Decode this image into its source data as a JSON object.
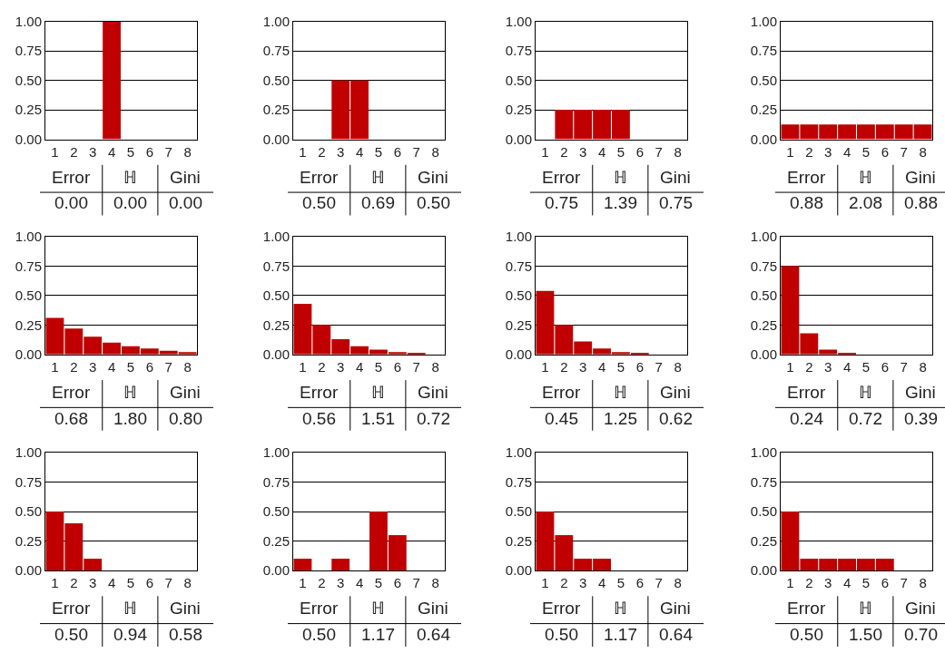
{
  "chart_data": [
    {
      "type": "bar",
      "categories": [
        "1",
        "2",
        "3",
        "4",
        "5",
        "6",
        "7",
        "8"
      ],
      "values": [
        0,
        0,
        0,
        1,
        0,
        0,
        0,
        0
      ],
      "color": "#c00000",
      "ylim": [
        0,
        1
      ],
      "yticks": [
        {
          "value": 0,
          "label": "0.00"
        },
        {
          "value": 0.25,
          "label": "0.25"
        },
        {
          "value": 0.5,
          "label": "0.50"
        },
        {
          "value": 0.75,
          "label": "0.75"
        },
        {
          "value": 1,
          "label": "1.00"
        }
      ],
      "grid": "y",
      "annotations": [
        "Error",
        "ℍ",
        "Gini",
        "0.00",
        "0.00",
        "0.00"
      ]
    },
    {
      "type": "bar",
      "categories": [
        "1",
        "2",
        "3",
        "4",
        "5",
        "6",
        "7",
        "8"
      ],
      "values": [
        0,
        0,
        0.5,
        0.5,
        0,
        0,
        0,
        0
      ],
      "color": "#c00000",
      "ylim": [
        0,
        1
      ],
      "yticks": [
        {
          "value": 0,
          "label": "0.00"
        },
        {
          "value": 0.25,
          "label": "0.25"
        },
        {
          "value": 0.5,
          "label": "0.50"
        },
        {
          "value": 0.75,
          "label": "0.75"
        },
        {
          "value": 1,
          "label": "1.00"
        }
      ],
      "grid": "y",
      "annotations": [
        "Error",
        "ℍ",
        "Gini",
        "0.50",
        "0.69",
        "0.50"
      ]
    },
    {
      "type": "bar",
      "categories": [
        "1",
        "2",
        "3",
        "4",
        "5",
        "6",
        "7",
        "8"
      ],
      "values": [
        0,
        0.25,
        0.25,
        0.25,
        0.25,
        0,
        0,
        0
      ],
      "color": "#c00000",
      "ylim": [
        0,
        1
      ],
      "yticks": [
        {
          "value": 0,
          "label": "0.00"
        },
        {
          "value": 0.25,
          "label": "0.25"
        },
        {
          "value": 0.5,
          "label": "0.50"
        },
        {
          "value": 0.75,
          "label": "0.75"
        },
        {
          "value": 1,
          "label": "1.00"
        }
      ],
      "grid": "y",
      "annotations": [
        "Error",
        "ℍ",
        "Gini",
        "0.75",
        "1.39",
        "0.75"
      ]
    },
    {
      "type": "bar",
      "categories": [
        "1",
        "2",
        "3",
        "4",
        "5",
        "6",
        "7",
        "8"
      ],
      "values": [
        0.125,
        0.125,
        0.125,
        0.125,
        0.125,
        0.125,
        0.125,
        0.125
      ],
      "color": "#c00000",
      "ylim": [
        0,
        1
      ],
      "yticks": [
        {
          "value": 0,
          "label": "0.00"
        },
        {
          "value": 0.25,
          "label": "0.25"
        },
        {
          "value": 0.5,
          "label": "0.50"
        },
        {
          "value": 0.75,
          "label": "0.75"
        },
        {
          "value": 1,
          "label": "1.00"
        }
      ],
      "grid": "y",
      "annotations": [
        "Error",
        "ℍ",
        "Gini",
        "0.88",
        "2.08",
        "0.88"
      ]
    },
    {
      "type": "bar",
      "categories": [
        "1",
        "2",
        "3",
        "4",
        "5",
        "6",
        "7",
        "8"
      ],
      "values": [
        0.31,
        0.22,
        0.15,
        0.1,
        0.07,
        0.05,
        0.03,
        0.02
      ],
      "color": "#c00000",
      "ylim": [
        0,
        1
      ],
      "yticks": [
        {
          "value": 0,
          "label": "0.00"
        },
        {
          "value": 0.25,
          "label": "0.25"
        },
        {
          "value": 0.5,
          "label": "0.50"
        },
        {
          "value": 0.75,
          "label": "0.75"
        },
        {
          "value": 1,
          "label": "1.00"
        }
      ],
      "grid": "y",
      "annotations": [
        "Error",
        "ℍ",
        "Gini",
        "0.68",
        "1.80",
        "0.80"
      ]
    },
    {
      "type": "bar",
      "categories": [
        "1",
        "2",
        "3",
        "4",
        "5",
        "6",
        "7",
        "8"
      ],
      "values": [
        0.43,
        0.25,
        0.13,
        0.07,
        0.04,
        0.02,
        0.01,
        0
      ],
      "color": "#c00000",
      "ylim": [
        0,
        1
      ],
      "yticks": [
        {
          "value": 0,
          "label": "0.00"
        },
        {
          "value": 0.25,
          "label": "0.25"
        },
        {
          "value": 0.5,
          "label": "0.50"
        },
        {
          "value": 0.75,
          "label": "0.75"
        },
        {
          "value": 1,
          "label": "1.00"
        }
      ],
      "grid": "y",
      "annotations": [
        "Error",
        "ℍ",
        "Gini",
        "0.56",
        "1.51",
        "0.72"
      ]
    },
    {
      "type": "bar",
      "categories": [
        "1",
        "2",
        "3",
        "4",
        "5",
        "6",
        "7",
        "8"
      ],
      "values": [
        0.54,
        0.25,
        0.11,
        0.05,
        0.02,
        0.01,
        0,
        0
      ],
      "color": "#c00000",
      "ylim": [
        0,
        1
      ],
      "yticks": [
        {
          "value": 0,
          "label": "0.00"
        },
        {
          "value": 0.25,
          "label": "0.25"
        },
        {
          "value": 0.5,
          "label": "0.50"
        },
        {
          "value": 0.75,
          "label": "0.75"
        },
        {
          "value": 1,
          "label": "1.00"
        }
      ],
      "grid": "y",
      "annotations": [
        "Error",
        "ℍ",
        "Gini",
        "0.45",
        "1.25",
        "0.62"
      ]
    },
    {
      "type": "bar",
      "categories": [
        "1",
        "2",
        "3",
        "4",
        "5",
        "6",
        "7",
        "8"
      ],
      "values": [
        0.75,
        0.18,
        0.04,
        0.01,
        0,
        0,
        0,
        0
      ],
      "color": "#c00000",
      "ylim": [
        0,
        1
      ],
      "yticks": [
        {
          "value": 0,
          "label": "0.00"
        },
        {
          "value": 0.25,
          "label": "0.25"
        },
        {
          "value": 0.5,
          "label": "0.50"
        },
        {
          "value": 0.75,
          "label": "0.75"
        },
        {
          "value": 1,
          "label": "1.00"
        }
      ],
      "grid": "y",
      "annotations": [
        "Error",
        "ℍ",
        "Gini",
        "0.24",
        "0.72",
        "0.39"
      ]
    },
    {
      "type": "bar",
      "categories": [
        "1",
        "2",
        "3",
        "4",
        "5",
        "6",
        "7",
        "8"
      ],
      "values": [
        0.5,
        0.4,
        0.1,
        0,
        0,
        0,
        0,
        0
      ],
      "color": "#c00000",
      "ylim": [
        0,
        1
      ],
      "yticks": [
        {
          "value": 0,
          "label": "0.00"
        },
        {
          "value": 0.25,
          "label": "0.25"
        },
        {
          "value": 0.5,
          "label": "0.50"
        },
        {
          "value": 0.75,
          "label": "0.75"
        },
        {
          "value": 1,
          "label": "1.00"
        }
      ],
      "grid": "y",
      "annotations": [
        "Error",
        "ℍ",
        "Gini",
        "0.50",
        "0.94",
        "0.58"
      ]
    },
    {
      "type": "bar",
      "categories": [
        "1",
        "2",
        "3",
        "4",
        "5",
        "6",
        "7",
        "8"
      ],
      "values": [
        0.1,
        0,
        0.1,
        0,
        0.5,
        0.3,
        0,
        0
      ],
      "color": "#c00000",
      "ylim": [
        0,
        1
      ],
      "yticks": [
        {
          "value": 0,
          "label": "0.00"
        },
        {
          "value": 0.25,
          "label": "0.25"
        },
        {
          "value": 0.5,
          "label": "0.50"
        },
        {
          "value": 0.75,
          "label": "0.75"
        },
        {
          "value": 1,
          "label": "1.00"
        }
      ],
      "grid": "y",
      "annotations": [
        "Error",
        "ℍ",
        "Gini",
        "0.50",
        "1.17",
        "0.64"
      ]
    },
    {
      "type": "bar",
      "categories": [
        "1",
        "2",
        "3",
        "4",
        "5",
        "6",
        "7",
        "8"
      ],
      "values": [
        0.5,
        0.3,
        0.1,
        0.1,
        0,
        0,
        0,
        0
      ],
      "color": "#c00000",
      "ylim": [
        0,
        1
      ],
      "yticks": [
        {
          "value": 0,
          "label": "0.00"
        },
        {
          "value": 0.25,
          "label": "0.25"
        },
        {
          "value": 0.5,
          "label": "0.50"
        },
        {
          "value": 0.75,
          "label": "0.75"
        },
        {
          "value": 1,
          "label": "1.00"
        }
      ],
      "grid": "y",
      "annotations": [
        "Error",
        "ℍ",
        "Gini",
        "0.50",
        "1.17",
        "0.64"
      ]
    },
    {
      "type": "bar",
      "categories": [
        "1",
        "2",
        "3",
        "4",
        "5",
        "6",
        "7",
        "8"
      ],
      "values": [
        0.5,
        0.1,
        0.1,
        0.1,
        0.1,
        0.1,
        0,
        0
      ],
      "color": "#c00000",
      "ylim": [
        0,
        1
      ],
      "yticks": [
        {
          "value": 0,
          "label": "0.00"
        },
        {
          "value": 0.25,
          "label": "0.25"
        },
        {
          "value": 0.5,
          "label": "0.50"
        },
        {
          "value": 0.75,
          "label": "0.75"
        },
        {
          "value": 1,
          "label": "1.00"
        }
      ],
      "grid": "y",
      "annotations": [
        "Error",
        "ℍ",
        "Gini",
        "0.50",
        "1.50",
        "0.70"
      ]
    }
  ]
}
